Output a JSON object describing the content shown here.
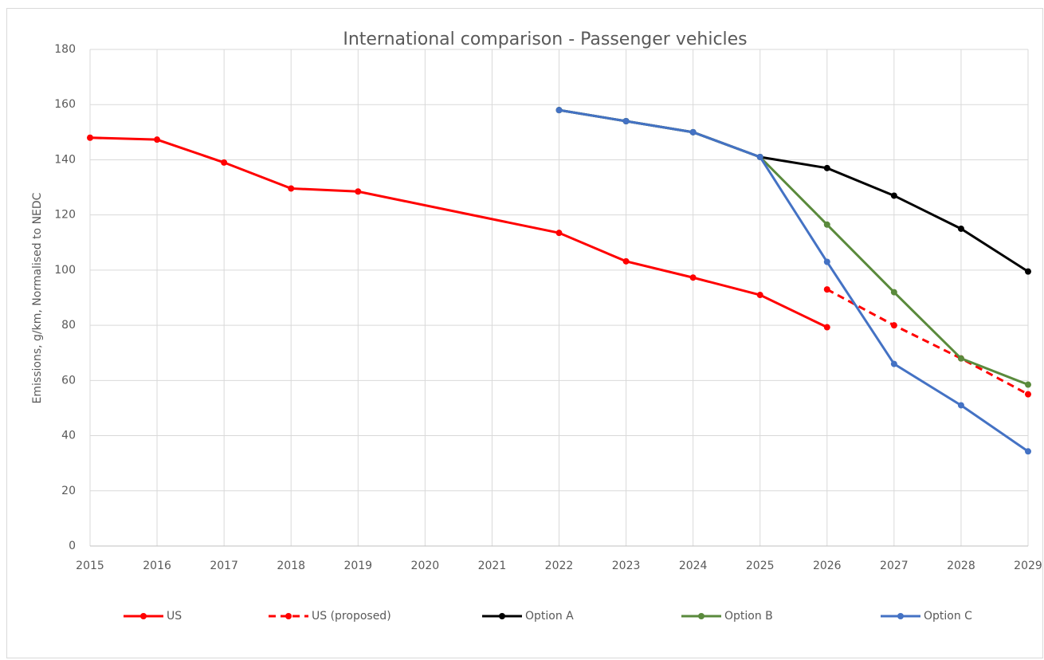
{
  "chart_data": {
    "type": "line",
    "title": "International comparison - Passenger vehicles",
    "y_label": "Emissions, g/km, Normalised to NEDC",
    "xlim": [
      2015,
      2029
    ],
    "xticks": [
      2015,
      2016,
      2017,
      2018,
      2019,
      2020,
      2021,
      2022,
      2023,
      2024,
      2025,
      2026,
      2027,
      2028,
      2029
    ],
    "ylim": [
      0,
      180
    ],
    "yticks": [
      0,
      20,
      40,
      60,
      80,
      100,
      120,
      140,
      160,
      180
    ],
    "grid": true,
    "legend": "bottom",
    "series": [
      {
        "name": "US",
        "color": "#ff0000",
        "dashed": false,
        "x": [
          2015,
          2016,
          2017,
          2018,
          2019,
          2022,
          2023,
          2024,
          2025,
          2026
        ],
        "values": [
          148,
          147.3,
          139,
          129.6,
          128.5,
          113.5,
          103.2,
          97.3,
          91,
          79.3
        ]
      },
      {
        "name": "US (proposed)",
        "color": "#ff0000",
        "dashed": true,
        "x": [
          2026,
          2027,
          2028,
          2029
        ],
        "values": [
          93,
          80,
          68,
          55
        ]
      },
      {
        "name": "Option A",
        "color": "#000000",
        "dashed": false,
        "x": [
          2022,
          2023,
          2024,
          2025,
          2026,
          2027,
          2028,
          2029
        ],
        "values": [
          158,
          154,
          150,
          141,
          137,
          127,
          115,
          99.5
        ]
      },
      {
        "name": "Option B",
        "color": "#5a8a3c",
        "dashed": false,
        "x": [
          2022,
          2023,
          2024,
          2025,
          2026,
          2027,
          2028,
          2029
        ],
        "values": [
          158,
          154,
          150,
          141,
          116.5,
          92,
          68,
          58.5
        ]
      },
      {
        "name": "Option C",
        "color": "#4472c4",
        "dashed": false,
        "x": [
          2022,
          2023,
          2024,
          2025,
          2026,
          2027,
          2028,
          2029
        ],
        "values": [
          158,
          154,
          150,
          141,
          103,
          66,
          51,
          34.3
        ]
      }
    ]
  }
}
